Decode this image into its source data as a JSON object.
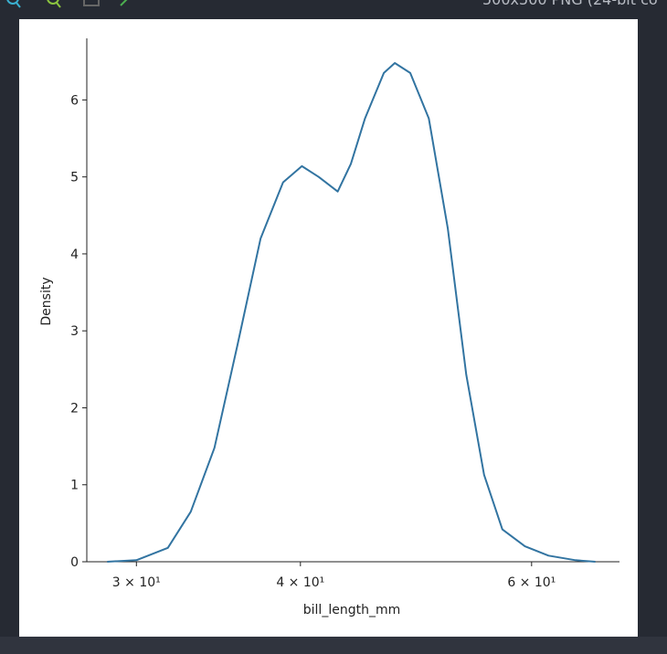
{
  "viewer": {
    "info": "500x500 PNG (24-bit co"
  },
  "chart_data": {
    "type": "line",
    "xlabel": "bill_length_mm",
    "ylabel": "Density",
    "xscale": "log",
    "x": [
      28.5,
      30,
      31.7,
      33.0,
      34.4,
      35.8,
      37.3,
      38.8,
      40.1,
      41.3,
      42.7,
      43.7,
      44.8,
      46.3,
      47.2,
      48.5,
      50.1,
      51.8,
      53.5,
      55.2,
      57.0,
      59.3,
      61.8,
      64.8,
      67.1
    ],
    "values": [
      0,
      0.02,
      0.18,
      0.65,
      1.48,
      2.8,
      4.2,
      4.93,
      5.14,
      5.0,
      4.81,
      5.17,
      5.76,
      6.35,
      6.48,
      6.35,
      5.76,
      4.33,
      2.43,
      1.13,
      0.42,
      0.2,
      0.08,
      0.02,
      0
    ],
    "color": "#3274a1",
    "xlim": [
      27.5,
      70
    ],
    "ylim": [
      0,
      6.8
    ],
    "xticks": [
      {
        "value": 30,
        "label": "3 × 10¹"
      },
      {
        "value": 40,
        "label": "4 × 10¹"
      },
      {
        "value": 60,
        "label": "6 × 10¹"
      }
    ],
    "yticks": [
      0,
      1,
      2,
      3,
      4,
      5,
      6
    ]
  }
}
